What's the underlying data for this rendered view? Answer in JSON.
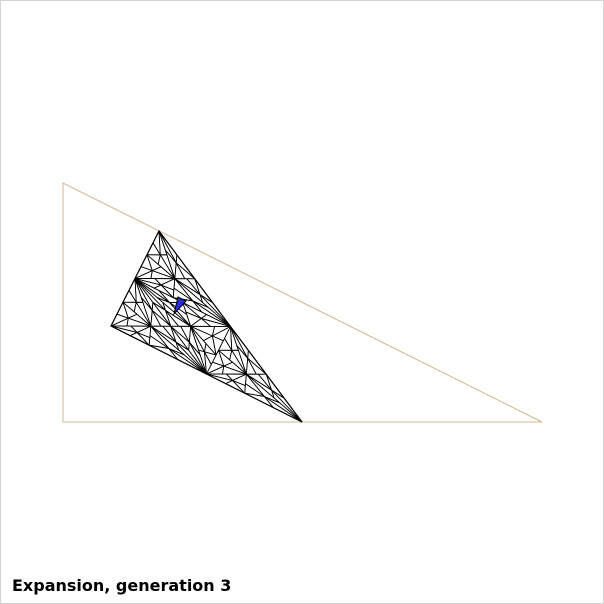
{
  "caption": "Expansion, generation 3",
  "colors": {
    "outer_triangle": "#d2b48c",
    "mesh": "#000000",
    "highlight_fill": "#2b2bd6",
    "background": "#ffffff",
    "frame_border": "#d3d3d3"
  },
  "figure": {
    "description_type": "triangle subdivision",
    "outer_triangle_color_name": "tan",
    "inner_triangle_color_name": "black",
    "highlight_color_name": "blue"
  }
}
